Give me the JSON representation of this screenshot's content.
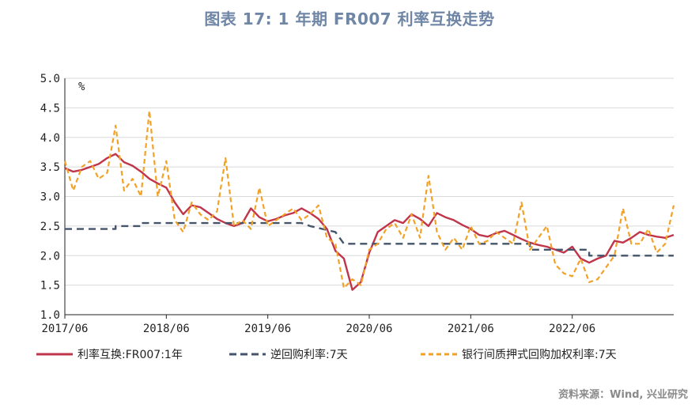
{
  "title": "图表 17: 1 年期 FR007 利率互换走势",
  "source": "资料来源：Wind, 兴业研究",
  "chart_data": {
    "type": "line",
    "unit_label": "%",
    "ylim": [
      1.0,
      5.0
    ],
    "y_ticks": [
      "5.0",
      "4.5",
      "4.0",
      "3.5",
      "3.0",
      "2.5",
      "2.0",
      "1.5",
      "1.0"
    ],
    "x_range": [
      "2017-06",
      "2023-06"
    ],
    "x_ticks": [
      "2017/06",
      "2018/06",
      "2019/06",
      "2020/06",
      "2021/06",
      "2022/06"
    ],
    "grid": true,
    "legend_position": "bottom",
    "colors": {
      "swap": "#c0354a",
      "reverse_repo": "#44546a",
      "repo": "#f2a127"
    },
    "series": [
      {
        "name": "利率互换:FR007:1年",
        "style": "solid",
        "points": [
          [
            "2017-06",
            3.48
          ],
          [
            "2017-07",
            3.42
          ],
          [
            "2017-08",
            3.45
          ],
          [
            "2017-09",
            3.5
          ],
          [
            "2017-10",
            3.55
          ],
          [
            "2017-11",
            3.65
          ],
          [
            "2017-12",
            3.72
          ],
          [
            "2018-01",
            3.58
          ],
          [
            "2018-02",
            3.52
          ],
          [
            "2018-03",
            3.42
          ],
          [
            "2018-04",
            3.3
          ],
          [
            "2018-05",
            3.22
          ],
          [
            "2018-06",
            3.15
          ],
          [
            "2018-07",
            2.9
          ],
          [
            "2018-08",
            2.7
          ],
          [
            "2018-09",
            2.85
          ],
          [
            "2018-10",
            2.82
          ],
          [
            "2018-11",
            2.72
          ],
          [
            "2018-12",
            2.62
          ],
          [
            "2019-01",
            2.55
          ],
          [
            "2019-02",
            2.5
          ],
          [
            "2019-03",
            2.55
          ],
          [
            "2019-04",
            2.8
          ],
          [
            "2019-05",
            2.65
          ],
          [
            "2019-06",
            2.58
          ],
          [
            "2019-07",
            2.62
          ],
          [
            "2019-08",
            2.68
          ],
          [
            "2019-09",
            2.72
          ],
          [
            "2019-10",
            2.8
          ],
          [
            "2019-11",
            2.72
          ],
          [
            "2019-12",
            2.62
          ],
          [
            "2020-01",
            2.45
          ],
          [
            "2020-02",
            2.08
          ],
          [
            "2020-03",
            1.95
          ],
          [
            "2020-04",
            1.42
          ],
          [
            "2020-05",
            1.55
          ],
          [
            "2020-06",
            2.05
          ],
          [
            "2020-07",
            2.4
          ],
          [
            "2020-08",
            2.5
          ],
          [
            "2020-09",
            2.6
          ],
          [
            "2020-10",
            2.55
          ],
          [
            "2020-11",
            2.7
          ],
          [
            "2020-12",
            2.62
          ],
          [
            "2021-01",
            2.5
          ],
          [
            "2021-02",
            2.72
          ],
          [
            "2021-03",
            2.65
          ],
          [
            "2021-04",
            2.6
          ],
          [
            "2021-05",
            2.52
          ],
          [
            "2021-06",
            2.45
          ],
          [
            "2021-07",
            2.35
          ],
          [
            "2021-08",
            2.32
          ],
          [
            "2021-09",
            2.38
          ],
          [
            "2021-10",
            2.42
          ],
          [
            "2021-11",
            2.35
          ],
          [
            "2021-12",
            2.28
          ],
          [
            "2022-01",
            2.22
          ],
          [
            "2022-02",
            2.18
          ],
          [
            "2022-03",
            2.15
          ],
          [
            "2022-04",
            2.1
          ],
          [
            "2022-05",
            2.05
          ],
          [
            "2022-06",
            2.15
          ],
          [
            "2022-07",
            1.95
          ],
          [
            "2022-08",
            1.88
          ],
          [
            "2022-09",
            1.95
          ],
          [
            "2022-10",
            2.0
          ],
          [
            "2022-11",
            2.25
          ],
          [
            "2022-12",
            2.22
          ],
          [
            "2023-01",
            2.3
          ],
          [
            "2023-02",
            2.4
          ],
          [
            "2023-03",
            2.35
          ],
          [
            "2023-04",
            2.32
          ],
          [
            "2023-05",
            2.3
          ],
          [
            "2023-06",
            2.35
          ]
        ]
      },
      {
        "name": "逆回购利率:7天",
        "style": "dashed",
        "points": [
          [
            "2017-06",
            2.45
          ],
          [
            "2017-12",
            2.45
          ],
          [
            "2017-12",
            2.5
          ],
          [
            "2018-03",
            2.5
          ],
          [
            "2018-03",
            2.55
          ],
          [
            "2019-10",
            2.55
          ],
          [
            "2019-11",
            2.5
          ],
          [
            "2020-02",
            2.4
          ],
          [
            "2020-03",
            2.2
          ],
          [
            "2022-01",
            2.2
          ],
          [
            "2022-01",
            2.1
          ],
          [
            "2022-08",
            2.1
          ],
          [
            "2022-08",
            2.0
          ],
          [
            "2023-06",
            2.0
          ]
        ]
      },
      {
        "name": "银行间质押式回购加权利率:7天",
        "style": "dashed",
        "points": [
          [
            "2017-06",
            3.6
          ],
          [
            "2017-07",
            3.1
          ],
          [
            "2017-08",
            3.5
          ],
          [
            "2017-09",
            3.6
          ],
          [
            "2017-10",
            3.3
          ],
          [
            "2017-11",
            3.4
          ],
          [
            "2017-12",
            4.2
          ],
          [
            "2018-01",
            3.1
          ],
          [
            "2018-02",
            3.3
          ],
          [
            "2018-03",
            3.0
          ],
          [
            "2018-04",
            4.45
          ],
          [
            "2018-05",
            3.0
          ],
          [
            "2018-06",
            3.6
          ],
          [
            "2018-07",
            2.6
          ],
          [
            "2018-08",
            2.4
          ],
          [
            "2018-09",
            2.9
          ],
          [
            "2018-10",
            2.7
          ],
          [
            "2018-11",
            2.6
          ],
          [
            "2018-12",
            2.75
          ],
          [
            "2019-01",
            3.65
          ],
          [
            "2019-02",
            2.5
          ],
          [
            "2019-03",
            2.6
          ],
          [
            "2019-04",
            2.45
          ],
          [
            "2019-05",
            3.15
          ],
          [
            "2019-06",
            2.5
          ],
          [
            "2019-07",
            2.6
          ],
          [
            "2019-08",
            2.7
          ],
          [
            "2019-09",
            2.8
          ],
          [
            "2019-10",
            2.6
          ],
          [
            "2019-11",
            2.7
          ],
          [
            "2019-12",
            2.85
          ],
          [
            "2020-01",
            2.3
          ],
          [
            "2020-02",
            2.2
          ],
          [
            "2020-03",
            1.45
          ],
          [
            "2020-04",
            1.6
          ],
          [
            "2020-05",
            1.5
          ],
          [
            "2020-06",
            2.1
          ],
          [
            "2020-07",
            2.2
          ],
          [
            "2020-08",
            2.45
          ],
          [
            "2020-09",
            2.55
          ],
          [
            "2020-10",
            2.3
          ],
          [
            "2020-11",
            2.7
          ],
          [
            "2020-12",
            2.3
          ],
          [
            "2021-01",
            3.35
          ],
          [
            "2021-02",
            2.4
          ],
          [
            "2021-03",
            2.1
          ],
          [
            "2021-04",
            2.3
          ],
          [
            "2021-05",
            2.1
          ],
          [
            "2021-06",
            2.5
          ],
          [
            "2021-07",
            2.2
          ],
          [
            "2021-08",
            2.25
          ],
          [
            "2021-09",
            2.4
          ],
          [
            "2021-10",
            2.3
          ],
          [
            "2021-11",
            2.2
          ],
          [
            "2021-12",
            2.9
          ],
          [
            "2022-01",
            2.1
          ],
          [
            "2022-02",
            2.3
          ],
          [
            "2022-03",
            2.5
          ],
          [
            "2022-04",
            1.85
          ],
          [
            "2022-05",
            1.7
          ],
          [
            "2022-06",
            1.65
          ],
          [
            "2022-07",
            1.95
          ],
          [
            "2022-08",
            1.55
          ],
          [
            "2022-09",
            1.6
          ],
          [
            "2022-10",
            1.8
          ],
          [
            "2022-11",
            2.0
          ],
          [
            "2022-12",
            2.8
          ],
          [
            "2023-01",
            2.2
          ],
          [
            "2023-02",
            2.2
          ],
          [
            "2023-03",
            2.45
          ],
          [
            "2023-04",
            2.05
          ],
          [
            "2023-05",
            2.2
          ],
          [
            "2023-06",
            2.85
          ]
        ]
      }
    ]
  }
}
